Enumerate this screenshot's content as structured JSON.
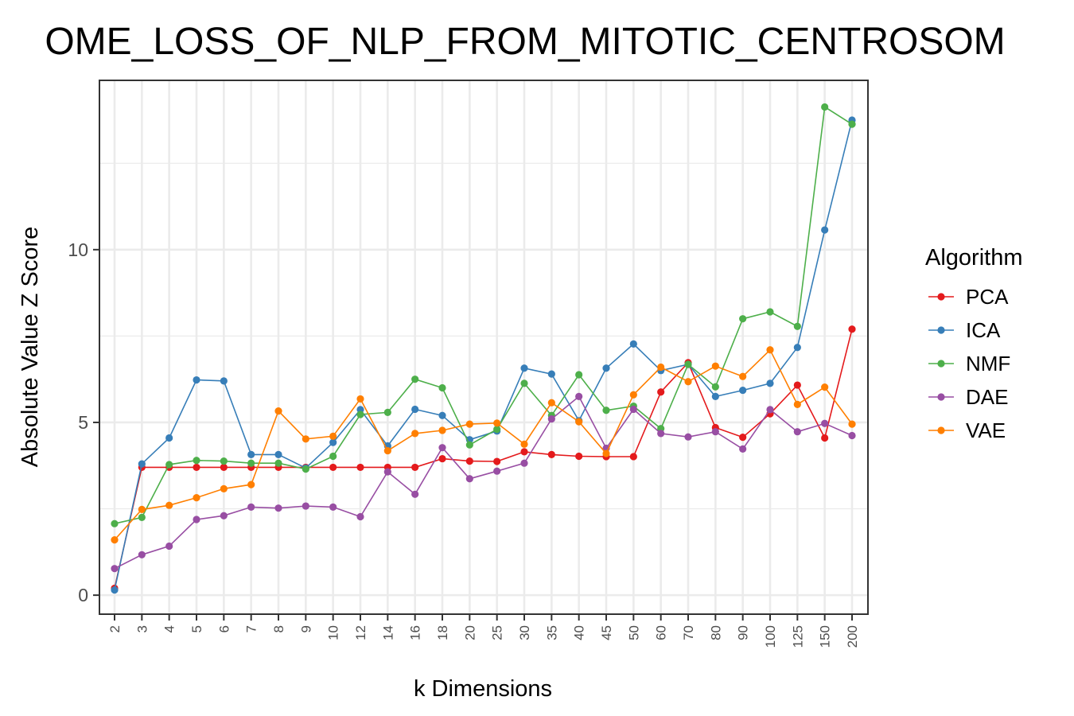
{
  "chart_data": {
    "type": "line",
    "title": "OME_LOSS_OF_NLP_FROM_MITOTIC_CENTROSOM",
    "xlabel": "k Dimensions",
    "ylabel": "Absolute Value Z Score",
    "categories": [
      "2",
      "3",
      "4",
      "5",
      "6",
      "7",
      "8",
      "9",
      "10",
      "12",
      "14",
      "16",
      "18",
      "20",
      "25",
      "30",
      "35",
      "40",
      "45",
      "50",
      "60",
      "70",
      "80",
      "90",
      "100",
      "125",
      "150",
      "200"
    ],
    "ylim": [
      -0.55,
      14.9
    ],
    "yticks": [
      0,
      5,
      10
    ],
    "grid": true,
    "legend": {
      "title": "Algorithm",
      "placement": "right"
    },
    "series": [
      {
        "name": "PCA",
        "color": "#e41a1c",
        "values": [
          0.2,
          3.7,
          3.7,
          3.7,
          3.7,
          3.7,
          3.7,
          3.7,
          3.7,
          3.7,
          3.7,
          3.7,
          3.95,
          3.88,
          3.87,
          4.15,
          4.07,
          4.02,
          4.01,
          4.01,
          5.88,
          6.73,
          4.85,
          4.57,
          5.25,
          6.08,
          4.55,
          7.7
        ]
      },
      {
        "name": "ICA",
        "color": "#377eb8",
        "values": [
          0.15,
          3.8,
          4.55,
          6.23,
          6.2,
          4.07,
          4.07,
          3.68,
          4.42,
          5.37,
          4.32,
          5.38,
          5.2,
          4.5,
          4.75,
          6.57,
          6.4,
          5.05,
          6.57,
          7.27,
          6.5,
          6.68,
          5.75,
          5.93,
          6.13,
          7.17,
          10.57,
          13.75
        ]
      },
      {
        "name": "NMF",
        "color": "#4daf4a",
        "values": [
          2.07,
          2.25,
          3.78,
          3.9,
          3.88,
          3.82,
          3.82,
          3.65,
          4.02,
          5.23,
          5.29,
          6.25,
          6.0,
          4.35,
          4.8,
          6.13,
          5.2,
          6.38,
          5.35,
          5.47,
          4.82,
          6.68,
          6.03,
          8.0,
          8.2,
          7.78,
          14.13,
          13.63
        ]
      },
      {
        "name": "DAE",
        "color": "#984ea3",
        "values": [
          0.77,
          1.17,
          1.42,
          2.19,
          2.3,
          2.55,
          2.52,
          2.58,
          2.55,
          2.27,
          3.57,
          2.92,
          4.27,
          3.37,
          3.59,
          3.82,
          5.1,
          5.75,
          4.25,
          5.38,
          4.68,
          4.58,
          4.73,
          4.23,
          5.37,
          4.73,
          4.97,
          4.62
        ]
      },
      {
        "name": "VAE",
        "color": "#ff7f00",
        "values": [
          1.6,
          2.48,
          2.6,
          2.82,
          3.08,
          3.2,
          5.33,
          4.52,
          4.6,
          5.68,
          4.18,
          4.68,
          4.77,
          4.95,
          4.98,
          4.37,
          5.57,
          5.02,
          4.1,
          5.8,
          6.6,
          6.18,
          6.63,
          6.33,
          7.1,
          5.52,
          6.02,
          4.95
        ]
      }
    ]
  }
}
